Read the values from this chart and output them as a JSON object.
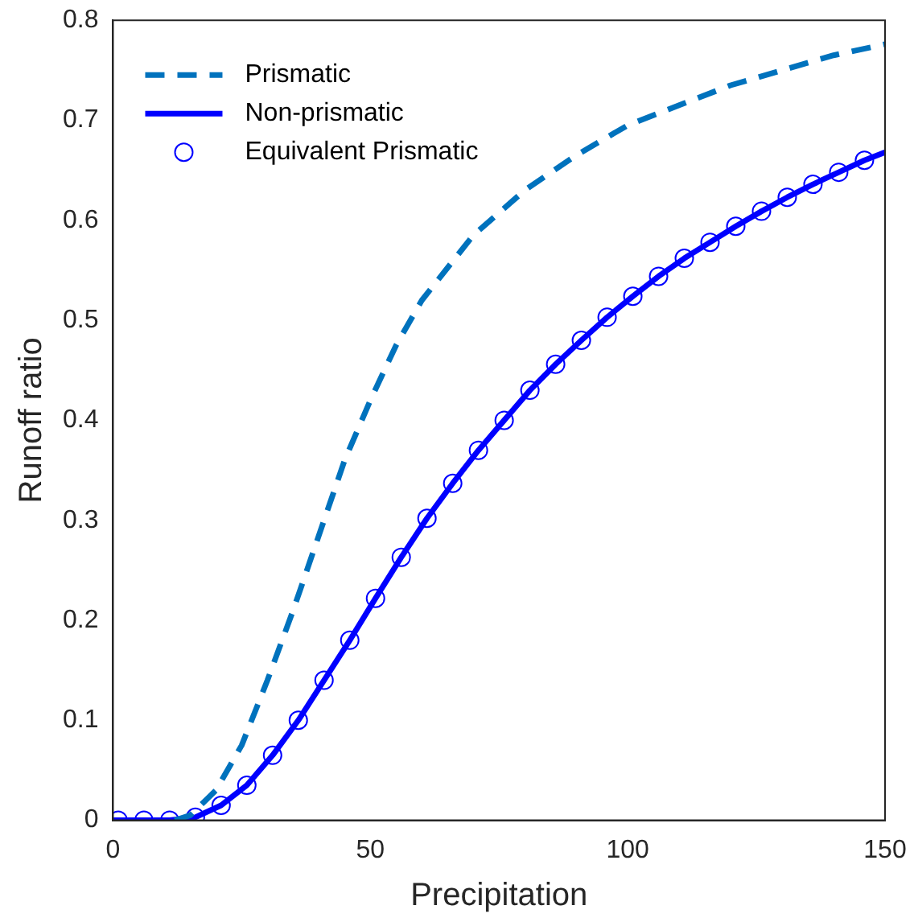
{
  "chart_data": {
    "type": "line",
    "xlabel": "Precipitation",
    "ylabel": "Runoff ratio",
    "xlim": [
      0,
      150
    ],
    "xticks": [
      0,
      50,
      100,
      150
    ],
    "ylim": [
      0,
      0.8
    ],
    "yticks": [
      0,
      0.1,
      0.2,
      0.3,
      0.4,
      0.5,
      0.6,
      0.7,
      0.8
    ],
    "grid": false,
    "legend": "top left",
    "series": [
      {
        "name": "Prismatic",
        "color": "#0072bd",
        "line_style": "dashed",
        "marker": "none",
        "x": [
          12,
          15,
          20,
          25,
          30,
          35,
          40,
          45,
          50,
          55,
          60,
          70,
          80,
          90,
          100,
          110,
          120,
          130,
          140,
          150
        ],
        "values": [
          0,
          0.005,
          0.03,
          0.075,
          0.14,
          0.21,
          0.285,
          0.36,
          0.42,
          0.475,
          0.52,
          0.585,
          0.63,
          0.665,
          0.695,
          0.715,
          0.735,
          0.75,
          0.765,
          0.776
        ]
      },
      {
        "name": "Non-prismatic",
        "color": "#0000ff",
        "line_style": "solid",
        "marker": "none",
        "x": [
          0,
          11,
          16,
          21,
          26,
          31,
          36,
          41,
          46,
          51,
          56,
          61,
          66,
          71,
          76,
          81,
          86,
          91,
          96,
          101,
          106,
          111,
          116,
          121,
          126,
          131,
          136,
          141,
          146,
          150
        ],
        "values": [
          0,
          0,
          0.003,
          0.015,
          0.035,
          0.065,
          0.1,
          0.14,
          0.18,
          0.222,
          0.263,
          0.302,
          0.337,
          0.37,
          0.4,
          0.43,
          0.456,
          0.48,
          0.503,
          0.524,
          0.544,
          0.562,
          0.578,
          0.594,
          0.609,
          0.623,
          0.636,
          0.648,
          0.66,
          0.668
        ]
      },
      {
        "name": "Equivalent Prismatic",
        "type": "scatter",
        "color": "#0000ff",
        "marker": "circle",
        "x": [
          1,
          6,
          11,
          16,
          21,
          26,
          31,
          36,
          41,
          46,
          51,
          56,
          61,
          66,
          71,
          76,
          81,
          86,
          91,
          96,
          101,
          106,
          111,
          116,
          121,
          126,
          131,
          136,
          141,
          146
        ],
        "values": [
          0,
          0,
          0,
          0.003,
          0.015,
          0.035,
          0.065,
          0.1,
          0.14,
          0.18,
          0.222,
          0.263,
          0.302,
          0.337,
          0.37,
          0.4,
          0.43,
          0.456,
          0.48,
          0.503,
          0.524,
          0.544,
          0.562,
          0.578,
          0.594,
          0.609,
          0.623,
          0.636,
          0.648,
          0.66
        ]
      }
    ]
  }
}
